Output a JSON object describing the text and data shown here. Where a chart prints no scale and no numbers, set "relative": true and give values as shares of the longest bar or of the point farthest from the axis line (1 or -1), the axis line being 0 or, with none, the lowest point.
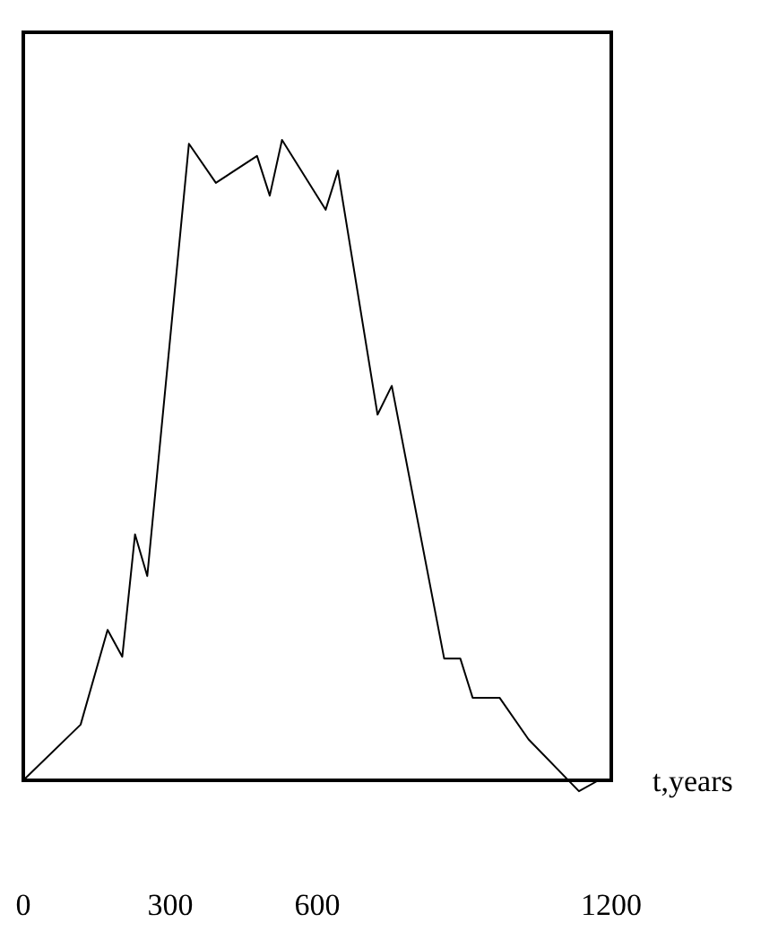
{
  "chart_data": {
    "type": "line",
    "relative": true,
    "xlabel": "t,years",
    "xlim": [
      0,
      1200
    ],
    "xticks": [
      0,
      300,
      600,
      1200
    ],
    "color": "#000000",
    "grid": false,
    "marker": "none",
    "line_style": "solid",
    "x": [
      0,
      117,
      172,
      202,
      228,
      253,
      338,
      393,
      477,
      503,
      528,
      617,
      642,
      723,
      752,
      859,
      892,
      917,
      972,
      1031,
      1134,
      1174
    ],
    "values": [
      0,
      0.087,
      0.235,
      0.193,
      0.384,
      0.319,
      0.994,
      0.933,
      0.975,
      0.913,
      1,
      0.891,
      0.952,
      0.571,
      0.616,
      0.19,
      0.19,
      0.129,
      0.129,
      0.064,
      -0.017,
      0
    ]
  }
}
